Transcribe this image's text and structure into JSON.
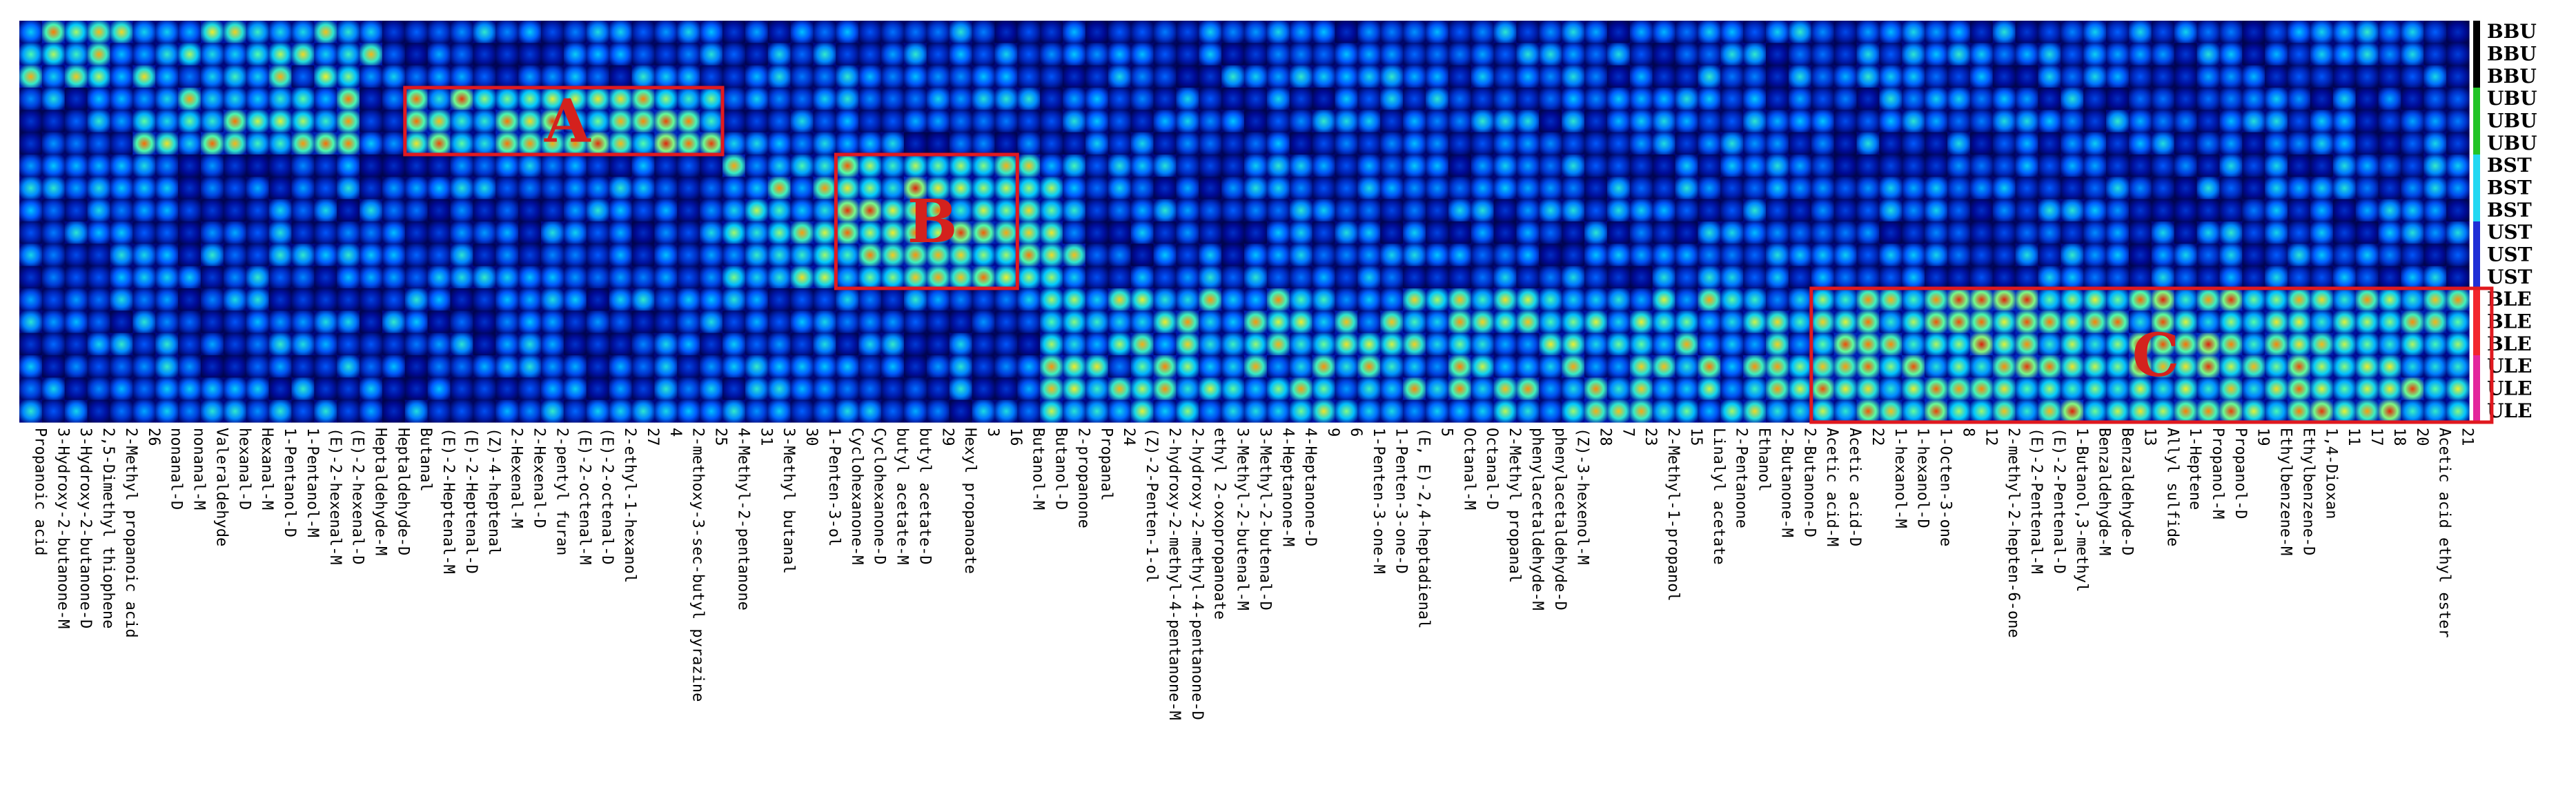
{
  "chart_data": {
    "type": "heatmap",
    "title": "",
    "xlabel": "",
    "ylabel": "",
    "rows": [
      "BBU",
      "BBU",
      "BBU",
      "UBU",
      "UBU",
      "UBU",
      "BST",
      "BST",
      "BST",
      "UST",
      "UST",
      "UST",
      "BLE",
      "BLE",
      "BLE",
      "ULE",
      "ULE",
      "ULE"
    ],
    "row_group_colors": {
      "BBU": "#000000",
      "UBU": "#22c427",
      "BST": "#22d8f2",
      "UST": "#1f2fd6",
      "BLE": "#f2262d",
      "ULE": "#e3279c"
    },
    "columns": [
      "Propanoic acid",
      "3-Hydroxy-2-butanone-M",
      "3-Hydroxy-2-butanone-D",
      "2,5-Dimethyl thiophene",
      "2-Methyl propanoic acid",
      "26",
      "nonanal-D",
      "nonanal-M",
      "Valeraldehyde",
      "hexanal-D",
      "Hexanal-M",
      "1-Pentanol-D",
      "1-Pentanol-M",
      "(E)-2-hexenal-M",
      "(E)-2-hexenal-D",
      "Heptaldehyde-M",
      "Heptaldehyde-D",
      "Butanal",
      "(E)-2-Heptenal-M",
      "(E)-2-Heptenal-D",
      "(Z)-4-heptenal",
      "2-Hexenal-M",
      "2-Hexenal-D",
      "2-pentyl furan",
      "(E)-2-octenal-M",
      "(E)-2-octenal-D",
      "2-ethyl-1-hexanol",
      "27",
      "4",
      "2-methoxy-3-sec-butyl pyrazine",
      "25",
      "4-Methyl-2-pentanone",
      "31",
      "3-Methyl butanal",
      "30",
      "1-Penten-3-ol",
      "Cyclohexanone-M",
      "Cyclohexanone-D",
      "butyl acetate-M",
      "butyl acetate-D",
      "29",
      "Hexyl propanoate",
      "3",
      "16",
      "Butanol-M",
      "Butanol-D",
      "2-propanone",
      "Propanal",
      "24",
      "(Z)-2-Penten-1-ol",
      "2-hydroxy-2-methyl-4-pentanone-M",
      "2-hydroxy-2-methyl-4-pentanone-D",
      "ethyl 2-oxopropanoate",
      "3-Methyl-2-butenal-M",
      "3-Methyl-2-butenal-D",
      "4-Heptanone-M",
      "4-Heptanone-D",
      "9",
      "6",
      "1-Penten-3-one-M",
      "1-Penten-3-one-D",
      "(E, E)-2,4-heptadienal",
      "5",
      "Octanal-M",
      "Octanal-D",
      "2-Methyl propanal",
      "phenylacetaldehyde-M",
      "phenylacetaldehyde-D",
      "(Z)-3-hexenol-M",
      "28",
      "7",
      "23",
      "2-Methyl-1-propanol",
      "15",
      "Linalyl acetate",
      "2-Pentanone",
      "Ethanol",
      "2-Butanone-M",
      "2-Butanone-D",
      "Acetic acid-M",
      "Acetic acid-D",
      "22",
      "1-hexanol-M",
      "1-hexanol-D",
      "1-Octen-3-one",
      "8",
      "12",
      "2-methyl-2-hepten-6-one",
      "(E)-2-Pentenal-M",
      "(E)-2-Pentenal-D",
      "1-Butanol,3-methyl",
      "Benzaldehyde-M",
      "Benzaldehyde-D",
      "13",
      "Allyl sulfide",
      "1-Heptene",
      "Propanol-M",
      "Propanol-D",
      "19",
      "Ethylbenzene-M",
      "Ethylbenzene-D",
      "1,4-Dioxan",
      "11",
      "17",
      "18",
      "20",
      "Acetic acid ethyl ester",
      "21"
    ],
    "values_scale": "0-1 relative signal intensity (dark blue = low, cyan/green/yellow = medium, red = high)",
    "regions": [
      {
        "label": "A",
        "rows": [
          3,
          5
        ],
        "col_range": [
          17,
          30
        ]
      },
      {
        "label": "B",
        "rows": [
          6,
          11
        ],
        "col_range": [
          36,
          43
        ]
      },
      {
        "label": "C",
        "rows": [
          12,
          17
        ],
        "col_range": [
          79,
          108
        ]
      }
    ]
  }
}
